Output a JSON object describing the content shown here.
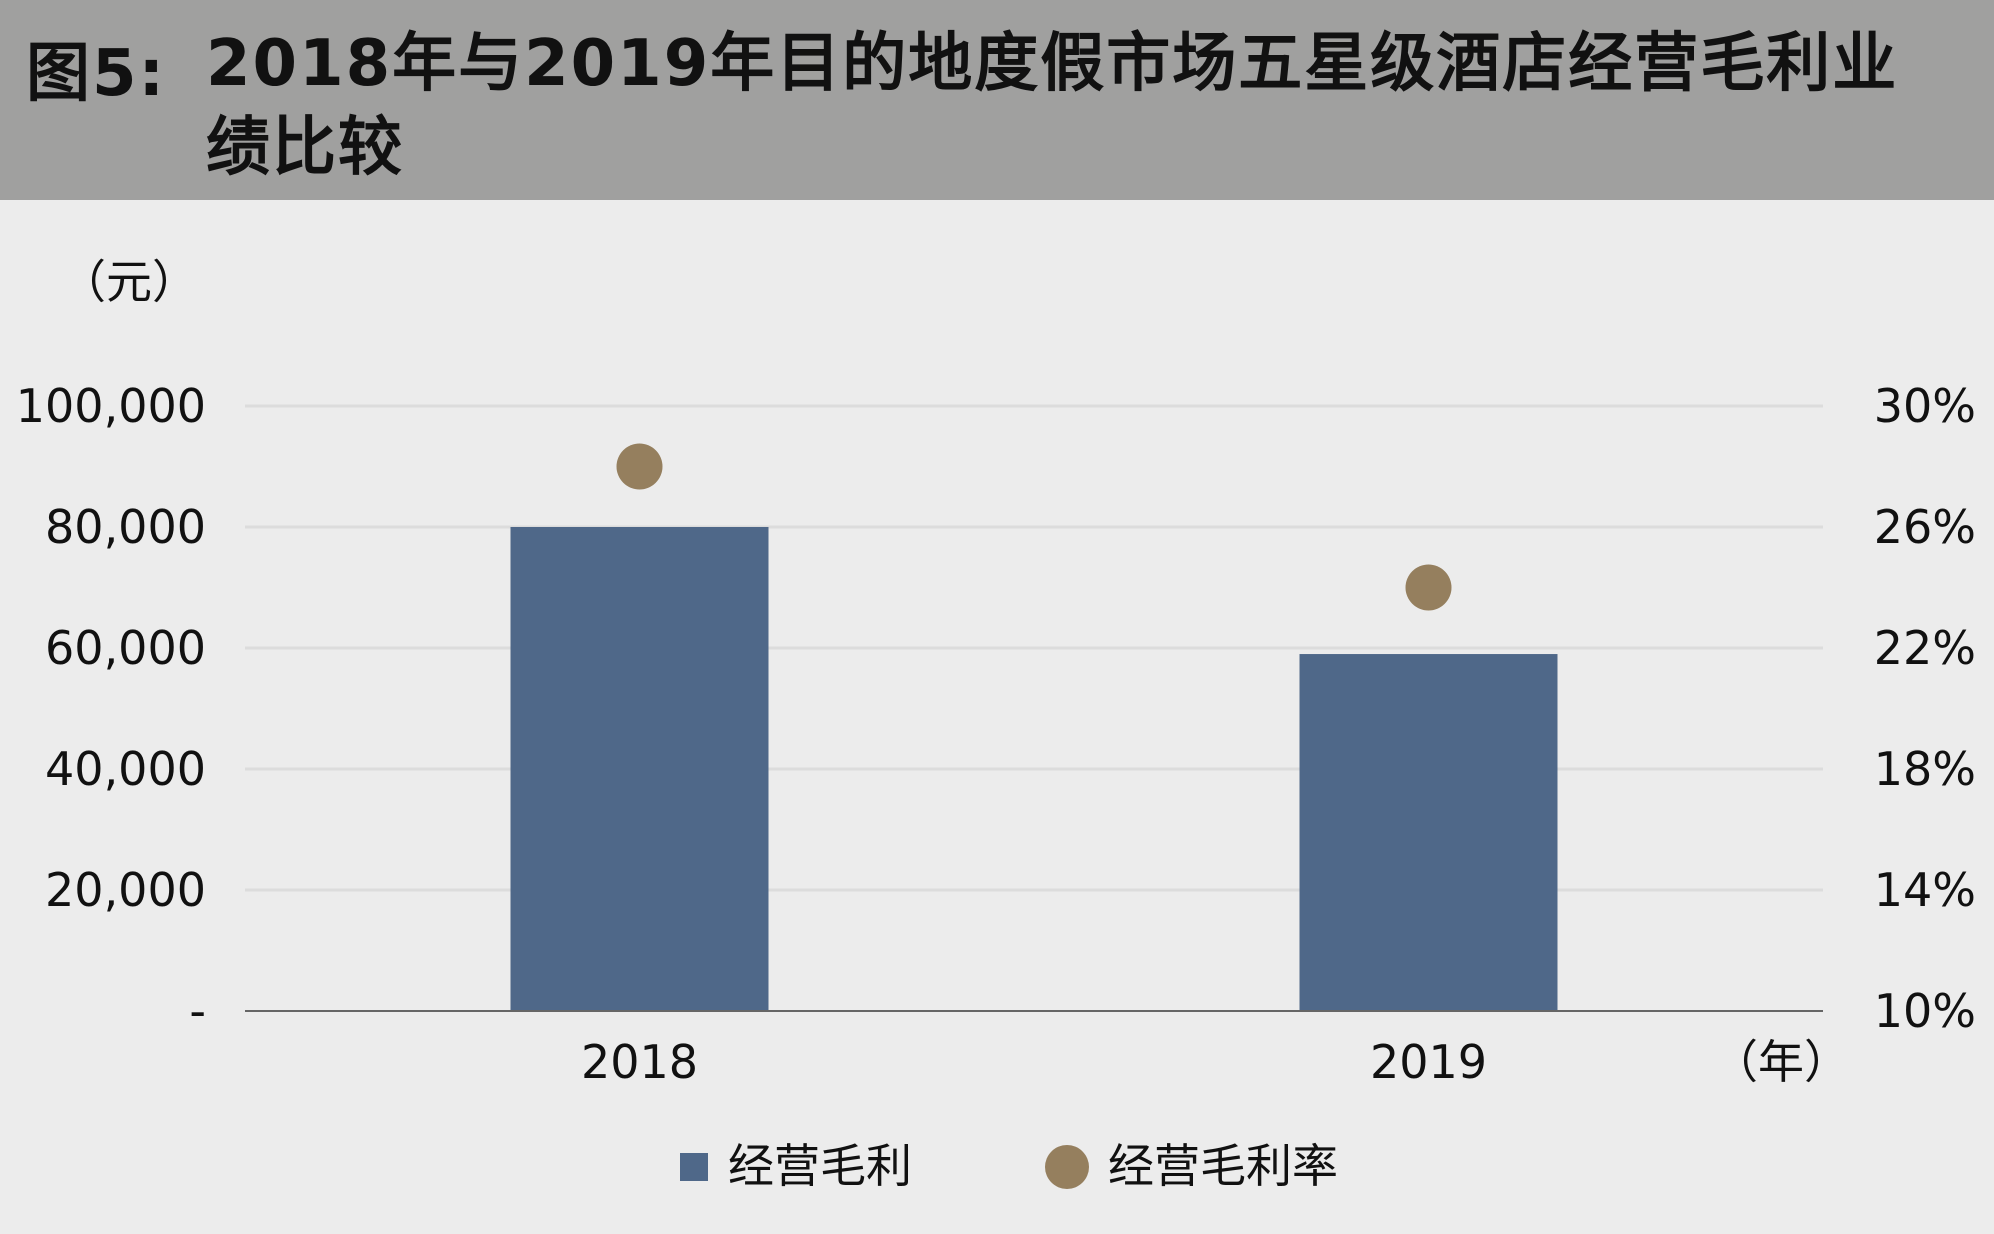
{
  "header": {
    "prefix": "图5:",
    "title": "2018年与2019年目的地度假市场五星级酒店经营毛利业绩比较"
  },
  "chart_data": {
    "type": "bar",
    "categories": [
      "2018",
      "2019"
    ],
    "series": [
      {
        "name": "经营毛利",
        "kind": "bar",
        "axis": "left",
        "color": "#4f6889",
        "values": [
          80000,
          59000
        ]
      },
      {
        "name": "经营毛利率",
        "kind": "scatter",
        "axis": "right",
        "color": "#957f5e",
        "values": [
          0.28,
          0.24
        ]
      }
    ],
    "y_left": {
      "unit_label": "（元）",
      "ylim": [
        0,
        100000
      ],
      "ticks": [
        0,
        20000,
        40000,
        60000,
        80000,
        100000
      ],
      "tick_labels": [
        "-",
        "20,000",
        "40,000",
        "60,000",
        "80,000",
        "100,000"
      ]
    },
    "y_right": {
      "ylim": [
        0.1,
        0.3
      ],
      "ticks": [
        0.1,
        0.14,
        0.18,
        0.22,
        0.26,
        0.3
      ],
      "tick_labels": [
        "10%",
        "14%",
        "18%",
        "22%",
        "26%",
        "30%"
      ]
    },
    "x_unit_label": "（年）",
    "grid": true,
    "legend_position": "bottom"
  }
}
